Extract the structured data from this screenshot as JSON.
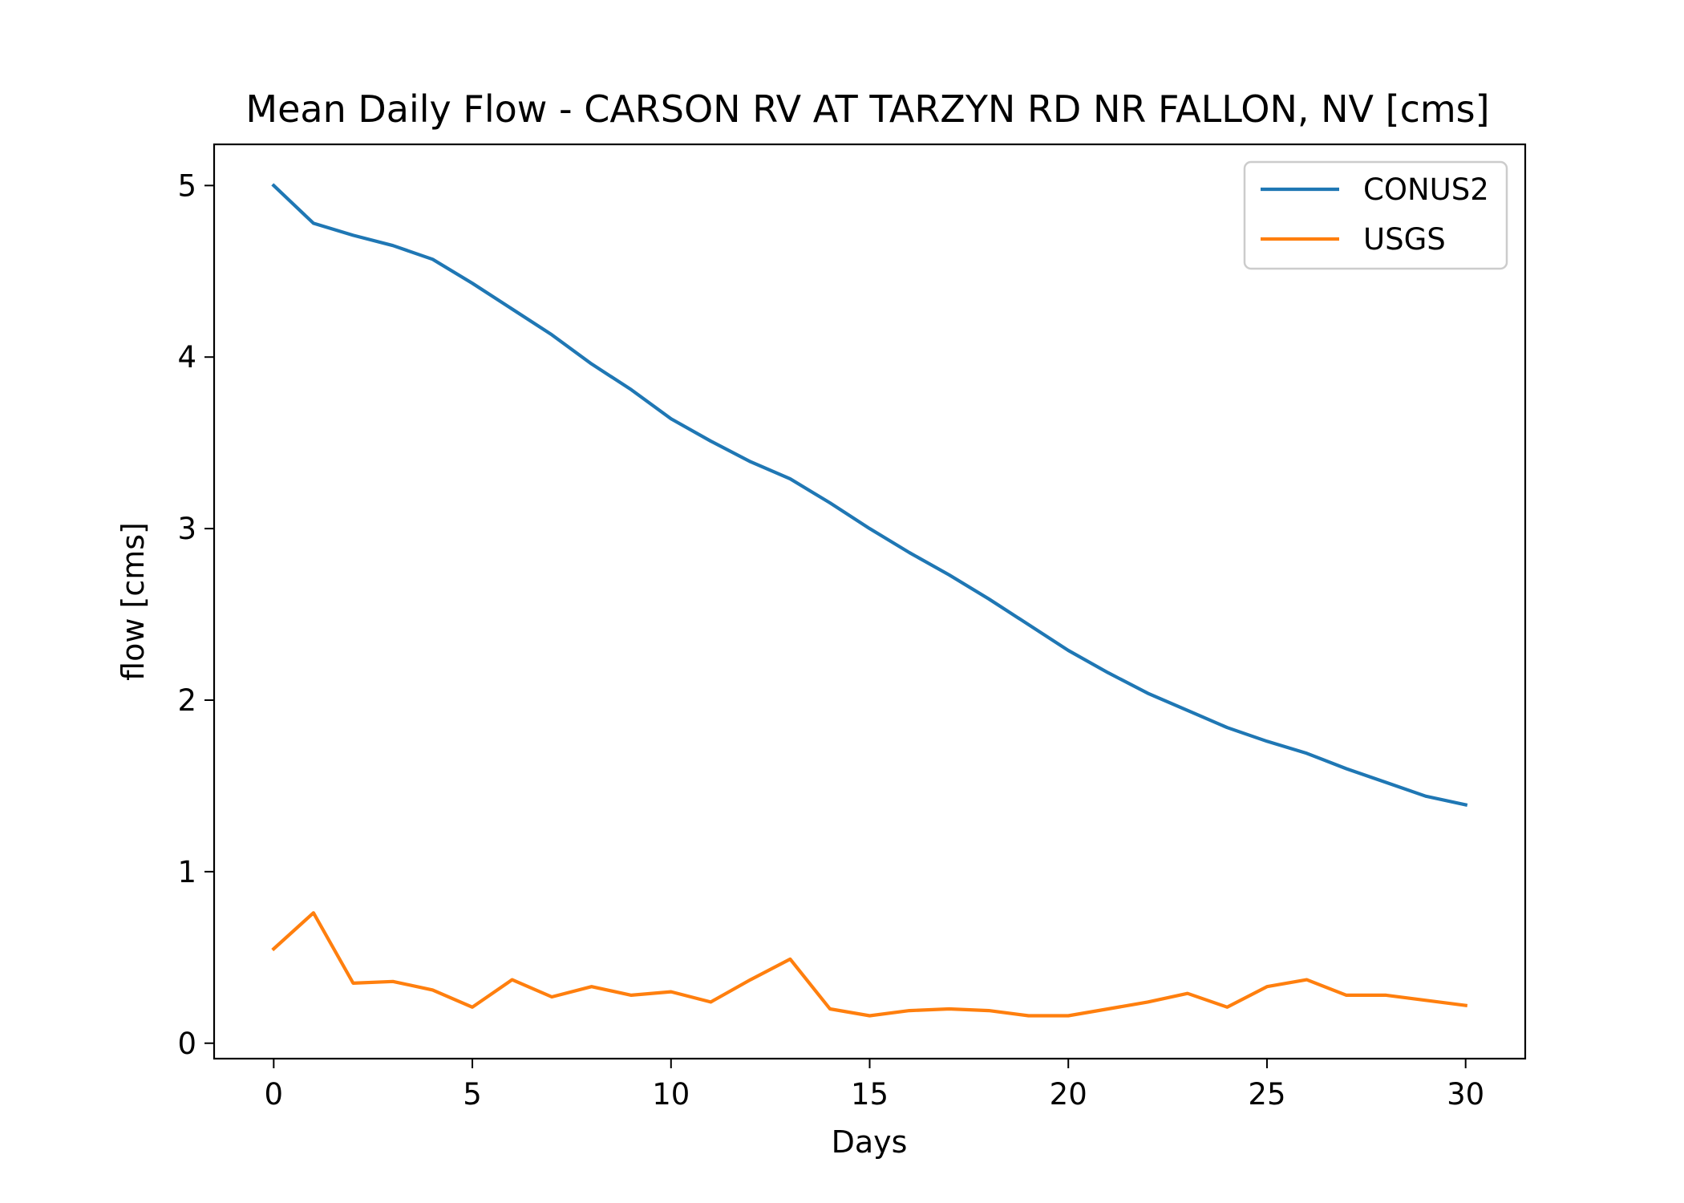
{
  "chart_data": {
    "type": "line",
    "title": "Mean Daily Flow - CARSON RV AT TARZYN RD NR FALLON, NV [cms]",
    "xlabel": "Days",
    "ylabel": "flow [cms]",
    "xlim": [
      -1.5,
      31.5
    ],
    "ylim": [
      -0.09,
      5.24
    ],
    "xticks": [
      0,
      5,
      10,
      15,
      20,
      25,
      30
    ],
    "yticks": [
      0,
      1,
      2,
      3,
      4,
      5
    ],
    "grid": false,
    "legend_position": "top-right",
    "x": [
      0,
      1,
      2,
      3,
      4,
      5,
      6,
      7,
      8,
      9,
      10,
      11,
      12,
      13,
      14,
      15,
      16,
      17,
      18,
      19,
      20,
      21,
      22,
      23,
      24,
      25,
      26,
      27,
      28,
      29,
      30
    ],
    "series": [
      {
        "name": "CONUS2",
        "color": "#1f77b4",
        "values": [
          5.0,
          4.78,
          4.71,
          4.65,
          4.57,
          4.43,
          4.28,
          4.13,
          3.96,
          3.81,
          3.64,
          3.51,
          3.39,
          3.29,
          3.15,
          3.0,
          2.86,
          2.73,
          2.59,
          2.44,
          2.29,
          2.16,
          2.04,
          1.94,
          1.84,
          1.76,
          1.69,
          1.6,
          1.52,
          1.44,
          1.39
        ]
      },
      {
        "name": "USGS",
        "color": "#ff7f0e",
        "values": [
          0.55,
          0.76,
          0.35,
          0.36,
          0.31,
          0.21,
          0.37,
          0.27,
          0.33,
          0.28,
          0.3,
          0.24,
          0.37,
          0.49,
          0.2,
          0.16,
          0.19,
          0.2,
          0.19,
          0.16,
          0.16,
          0.2,
          0.24,
          0.29,
          0.21,
          0.33,
          0.37,
          0.28,
          0.28,
          0.25,
          0.22
        ]
      }
    ]
  }
}
